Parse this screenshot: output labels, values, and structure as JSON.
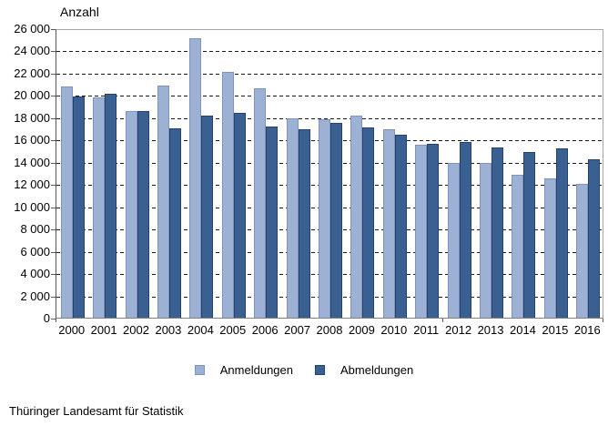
{
  "title": "Anzahl",
  "source": "Thüringer Landesamt für Statistik",
  "colors": {
    "anmeldungen_fill": "#9DB1D5",
    "anmeldungen_border": "#8093BF",
    "abmeldungen_fill": "#3A5F91",
    "abmeldungen_border": "#25416E",
    "gridline": "#1a1a1a",
    "axis": "#595959",
    "plot_border": "#a6a6a6"
  },
  "chart_data": {
    "type": "bar",
    "title": "Anzahl",
    "y_axis_title": "Anzahl",
    "categories": [
      "2000",
      "2001",
      "2002",
      "2003",
      "2004",
      "2005",
      "2006",
      "2007",
      "2008",
      "2009",
      "2010",
      "2011",
      "2012",
      "2013",
      "2014",
      "2015",
      "2016"
    ],
    "series": [
      {
        "name": "Anmeldungen",
        "color": "#9DB1D5",
        "border_color": "#8093BF",
        "values": [
          20900,
          19900,
          18700,
          21000,
          25300,
          22200,
          20700,
          18000,
          17900,
          18300,
          17000,
          15600,
          14000,
          14000,
          12900,
          12600,
          12100
        ]
      },
      {
        "name": "Abmeldungen",
        "color": "#3A5F91",
        "border_color": "#25416E",
        "values": [
          20000,
          20200,
          18700,
          17100,
          18300,
          18500,
          17300,
          17000,
          17600,
          17200,
          16500,
          15700,
          15900,
          15400,
          15000,
          15300,
          14300
        ]
      }
    ],
    "ylim": [
      0,
      26000
    ],
    "ytick_step": 2000,
    "ytick_labels": [
      "0",
      "2 000",
      "4 000",
      "6 000",
      "8 000",
      "10 000",
      "12 000",
      "14 000",
      "16 000",
      "18 000",
      "20 000",
      "22 000",
      "24 000",
      "26 000"
    ],
    "grid": "horizontal-dashed",
    "legend_position": "bottom",
    "xticks_at_category_boundaries": [
      0,
      12,
      17
    ]
  }
}
